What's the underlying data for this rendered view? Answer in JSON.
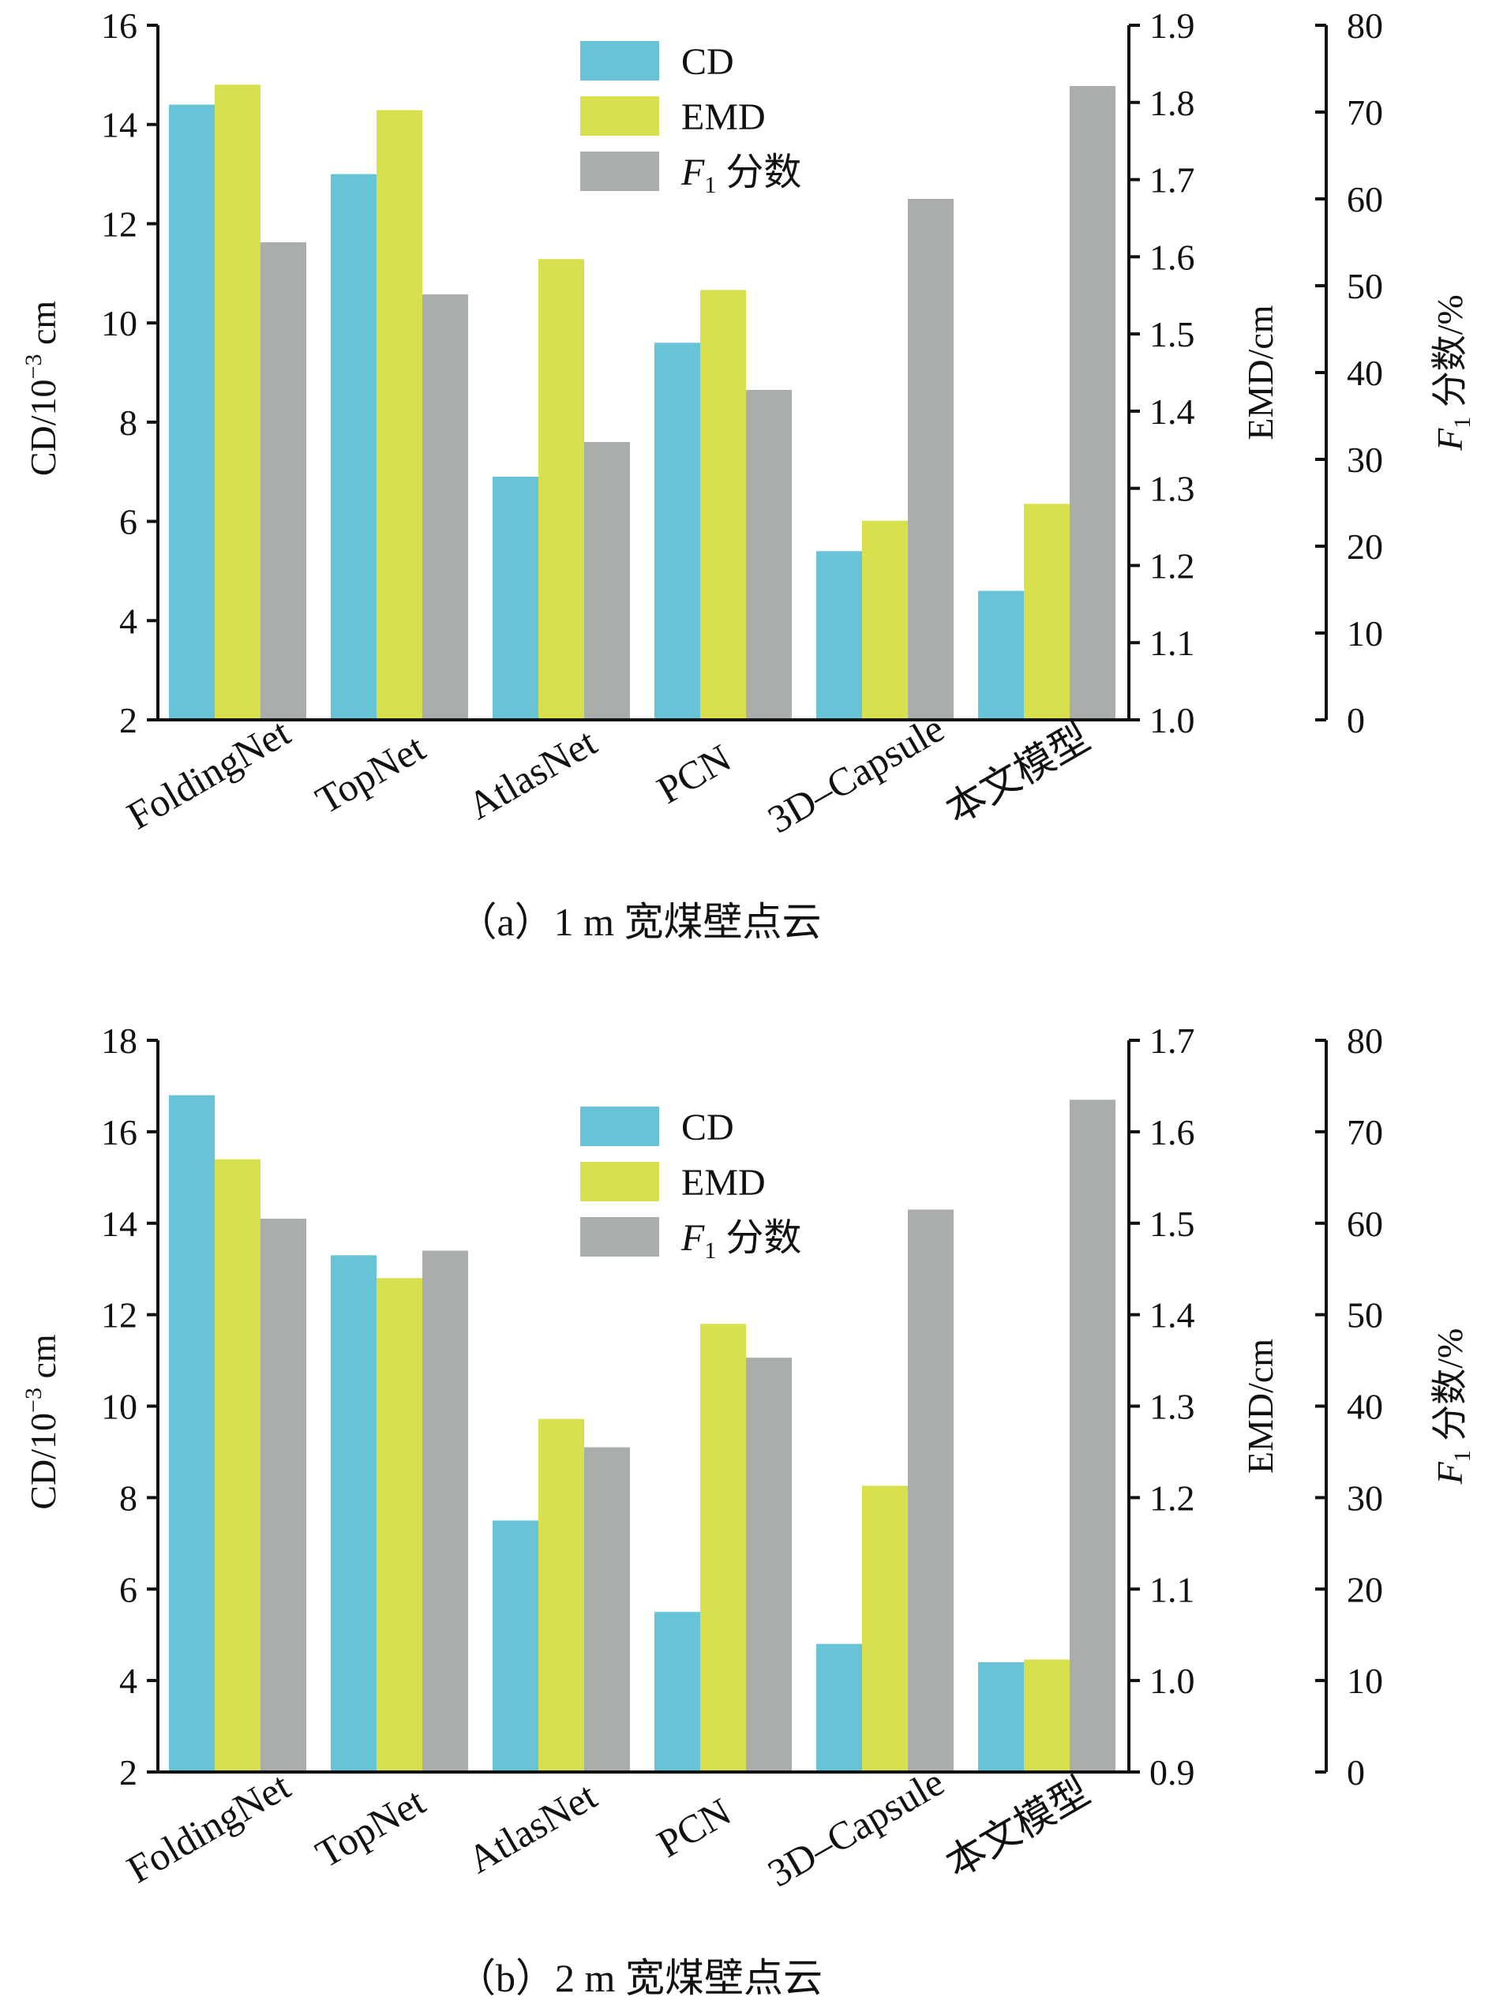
{
  "colors": {
    "cd": "#66c4d6",
    "emd": "#d9e04d",
    "f1": "#a9aeac"
  },
  "chart_data": [
    {
      "type": "bar",
      "caption": "（a）1 m 宽煤壁点云",
      "categories": [
        "FoldingNet",
        "TopNet",
        "AtlasNet",
        "PCN",
        "3D–Capsule",
        "本文模型"
      ],
      "legend": [
        {
          "key": "cd",
          "label": "CD"
        },
        {
          "key": "emd",
          "label": "EMD"
        },
        {
          "key": "f1",
          "label_italic": "F",
          "label_sub": "1",
          "label_rest": " 分数"
        }
      ],
      "series": [
        {
          "key": "cd",
          "name": "CD",
          "axis": "left",
          "values": [
            14.4,
            13.0,
            6.9,
            9.6,
            5.4,
            4.6
          ]
        },
        {
          "key": "emd",
          "name": "EMD",
          "axis": "right1",
          "values": [
            1.823,
            1.79,
            1.597,
            1.557,
            1.258,
            1.28
          ]
        },
        {
          "key": "f1",
          "name": "F1 分数",
          "axis": "right2",
          "values": [
            55.0,
            49.0,
            32.0,
            38.0,
            60.0,
            73.0
          ]
        }
      ],
      "axes": {
        "left": {
          "min": 2,
          "max": 16,
          "ticks": [
            "2",
            "4",
            "6",
            "8",
            "10",
            "12",
            "14",
            "16"
          ],
          "title": "CD/10",
          "title_sup": "−3",
          "title_unit": " cm"
        },
        "right1": {
          "min": 1.0,
          "max": 1.9,
          "ticks": [
            "1.0",
            "1.1",
            "1.2",
            "1.3",
            "1.4",
            "1.5",
            "1.6",
            "1.7",
            "1.8",
            "1.9"
          ],
          "title": "EMD/cm"
        },
        "right2": {
          "min": 0,
          "max": 80,
          "ticks": [
            "0",
            "10",
            "20",
            "30",
            "40",
            "50",
            "60",
            "70",
            "80"
          ],
          "title_italic": "F",
          "title_sub": "1",
          "title_rest": " 分数/%"
        }
      }
    },
    {
      "type": "bar",
      "caption": "（b）2 m 宽煤壁点云",
      "categories": [
        "FoldingNet",
        "TopNet",
        "AtlasNet",
        "PCN",
        "3D–Capsule",
        "本文模型"
      ],
      "legend": [
        {
          "key": "cd",
          "label": "CD"
        },
        {
          "key": "emd",
          "label": "EMD"
        },
        {
          "key": "f1",
          "label_italic": "F",
          "label_sub": "1",
          "label_rest": " 分数"
        }
      ],
      "series": [
        {
          "key": "cd",
          "name": "CD",
          "axis": "left",
          "values": [
            16.8,
            13.3,
            7.5,
            5.5,
            4.8,
            4.4
          ]
        },
        {
          "key": "emd",
          "name": "EMD",
          "axis": "right1",
          "values": [
            1.57,
            1.44,
            1.286,
            1.39,
            1.213,
            1.023
          ]
        },
        {
          "key": "f1",
          "name": "F1 分数",
          "axis": "right2",
          "values": [
            60.5,
            57.0,
            35.5,
            45.3,
            61.5,
            73.5
          ]
        }
      ],
      "axes": {
        "left": {
          "min": 2,
          "max": 18,
          "ticks": [
            "2",
            "4",
            "6",
            "8",
            "10",
            "12",
            "14",
            "16",
            "18"
          ],
          "title": "CD/10",
          "title_sup": "−3",
          "title_unit": " cm"
        },
        "right1": {
          "min": 0.9,
          "max": 1.7,
          "ticks": [
            "0.9",
            "1.0",
            "1.1",
            "1.2",
            "1.3",
            "1.4",
            "1.5",
            "1.6",
            "1.7"
          ],
          "title": "EMD/cm"
        },
        "right2": {
          "min": 0,
          "max": 80,
          "ticks": [
            "0",
            "10",
            "20",
            "30",
            "40",
            "50",
            "60",
            "70",
            "80"
          ],
          "title_italic": "F",
          "title_sub": "1",
          "title_rest": " 分数/%"
        }
      }
    }
  ]
}
